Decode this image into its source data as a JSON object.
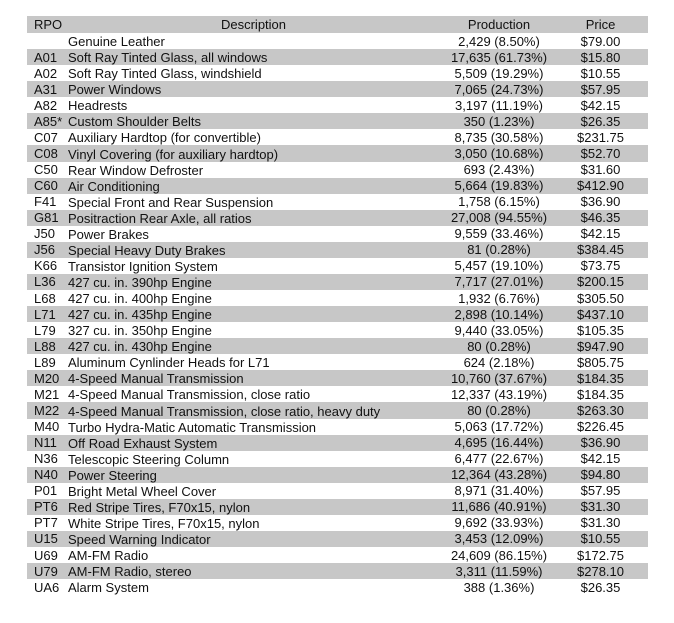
{
  "colors": {
    "band": "#c7c7c7",
    "row": "#ffffff",
    "text": "#111111",
    "page_background": "#ffffff"
  },
  "chart_data": {
    "type": "table",
    "columns": [
      "RPO",
      "Description",
      "Production",
      "Price"
    ],
    "layout_hints": {
      "banding": "header and every second data row shaded gray",
      "production_alignment": "center",
      "price_alignment": "center"
    },
    "rows": [
      {
        "rpo": "",
        "description": "Genuine Leather",
        "production": "2,429 (8.50%)",
        "price": "$79.00"
      },
      {
        "rpo": "A01",
        "description": "Soft Ray Tinted Glass, all windows",
        "production": "17,635 (61.73%)",
        "price": "$15.80"
      },
      {
        "rpo": "A02",
        "description": "Soft Ray Tinted Glass, windshield",
        "production": "5,509 (19.29%)",
        "price": "$10.55"
      },
      {
        "rpo": "A31",
        "description": "Power Windows",
        "production": "7,065 (24.73%)",
        "price": "$57.95"
      },
      {
        "rpo": "A82",
        "description": "Headrests",
        "production": "3,197 (11.19%)",
        "price": "$42.15"
      },
      {
        "rpo": "A85*",
        "description": "Custom Shoulder Belts",
        "production": "350 (1.23%)",
        "price": "$26.35"
      },
      {
        "rpo": "C07",
        "description": "Auxiliary Hardtop (for convertible)",
        "production": "8,735 (30.58%)",
        "price": "$231.75"
      },
      {
        "rpo": "C08",
        "description": "Vinyl Covering (for auxiliary hardtop)",
        "production": "3,050 (10.68%)",
        "price": "$52.70"
      },
      {
        "rpo": "C50",
        "description": "Rear Window Defroster",
        "production": "693 (2.43%)",
        "price": "$31.60"
      },
      {
        "rpo": "C60",
        "description": "Air Conditioning",
        "production": "5,664 (19.83%)",
        "price": "$412.90"
      },
      {
        "rpo": "F41",
        "description": "Special Front and Rear Suspension",
        "production": "1,758 (6.15%)",
        "price": "$36.90"
      },
      {
        "rpo": "G81",
        "description": "Positraction Rear Axle, all ratios",
        "production": "27,008 (94.55%)",
        "price": "$46.35"
      },
      {
        "rpo": "J50",
        "description": "Power Brakes",
        "production": "9,559 (33.46%)",
        "price": "$42.15"
      },
      {
        "rpo": "J56",
        "description": "Special Heavy Duty Brakes",
        "production": "81 (0.28%)",
        "price": "$384.45"
      },
      {
        "rpo": "K66",
        "description": "Transistor Ignition System",
        "production": "5,457 (19.10%)",
        "price": "$73.75"
      },
      {
        "rpo": "L36",
        "description": "427 cu. in. 390hp Engine",
        "production": "7,717 (27.01%)",
        "price": "$200.15"
      },
      {
        "rpo": "L68",
        "description": "427 cu. in. 400hp Engine",
        "production": "1,932 (6.76%)",
        "price": "$305.50"
      },
      {
        "rpo": "L71",
        "description": "427 cu. in. 435hp Engine",
        "production": "2,898 (10.14%)",
        "price": "$437.10"
      },
      {
        "rpo": "L79",
        "description": "327 cu. in. 350hp Engine",
        "production": "9,440 (33.05%)",
        "price": "$105.35"
      },
      {
        "rpo": "L88",
        "description": "427 cu. in. 430hp Engine",
        "production": "80 (0.28%)",
        "price": "$947.90"
      },
      {
        "rpo": "L89",
        "description": "Aluminum Cynlinder Heads for L71",
        "production": "624 (2.18%)",
        "price": "$805.75"
      },
      {
        "rpo": "M20",
        "description": "4-Speed Manual Transmission",
        "production": "10,760 (37.67%)",
        "price": "$184.35"
      },
      {
        "rpo": "M21",
        "description": "4-Speed Manual Transmission, close ratio",
        "production": "12,337 (43.19%)",
        "price": "$184.35"
      },
      {
        "rpo": "M22",
        "description": "4-Speed Manual Transmission, close ratio, heavy duty",
        "production": "80 (0.28%)",
        "price": "$263.30"
      },
      {
        "rpo": "M40",
        "description": "Turbo Hydra-Matic Automatic Transmission",
        "production": "5,063 (17.72%)",
        "price": "$226.45"
      },
      {
        "rpo": "N11",
        "description": "Off Road Exhaust System",
        "production": "4,695 (16.44%)",
        "price": "$36.90"
      },
      {
        "rpo": "N36",
        "description": "Telescopic Steering Column",
        "production": "6,477 (22.67%)",
        "price": "$42.15"
      },
      {
        "rpo": "N40",
        "description": "Power Steering",
        "production": "12,364 (43.28%)",
        "price": "$94.80"
      },
      {
        "rpo": "P01",
        "description": "Bright Metal Wheel Cover",
        "production": "8,971 (31.40%)",
        "price": "$57.95"
      },
      {
        "rpo": "PT6",
        "description": "Red Stripe Tires, F70x15, nylon",
        "production": "11,686 (40.91%)",
        "price": "$31.30"
      },
      {
        "rpo": "PT7",
        "description": "White Stripe Tires, F70x15, nylon",
        "production": "9,692 (33.93%)",
        "price": "$31.30"
      },
      {
        "rpo": "U15",
        "description": "Speed Warning Indicator",
        "production": "3,453 (12.09%)",
        "price": "$10.55"
      },
      {
        "rpo": "U69",
        "description": "AM-FM Radio",
        "production": "24,609 (86.15%)",
        "price": "$172.75"
      },
      {
        "rpo": "U79",
        "description": "AM-FM Radio, stereo",
        "production": "3,311 (11.59%)",
        "price": "$278.10"
      },
      {
        "rpo": "UA6",
        "description": "Alarm System",
        "production": "388 (1.36%)",
        "price": "$26.35"
      }
    ]
  }
}
